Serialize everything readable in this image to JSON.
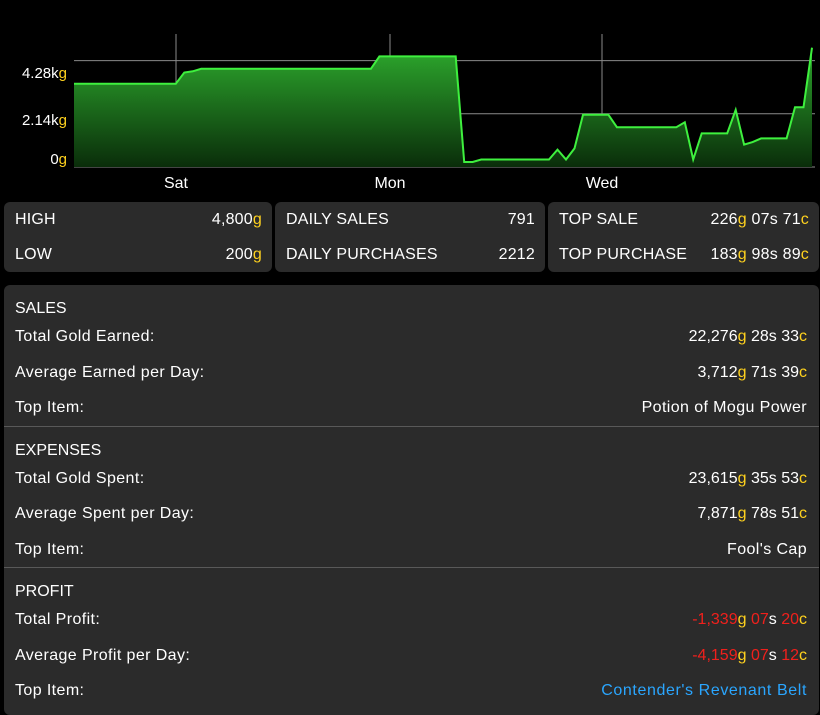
{
  "chart": {
    "y_labels": [
      {
        "num": "4.28k",
        "unit": "g"
      },
      {
        "num": "2.14k",
        "unit": "g"
      },
      {
        "num": "0",
        "unit": "g"
      }
    ],
    "x_labels": [
      "Sat",
      "Mon",
      "Wed"
    ],
    "colors": {
      "line": "#3ef03e",
      "fill_top": "#2da82d",
      "fill_bottom": "#0a2d0a",
      "grid": "#8a8a8a"
    }
  },
  "chart_data": {
    "type": "area",
    "title": "",
    "xlabel": "",
    "ylabel": "",
    "x_ticks": [
      "Sat",
      "Mon",
      "Wed"
    ],
    "y_ticks": [
      "0g",
      "2.14kg",
      "4.28kg"
    ],
    "ylim": [
      0,
      5350
    ],
    "grid": true,
    "series": [
      {
        "values": [
          3350,
          3350,
          3350,
          3350,
          3350,
          3350,
          3350,
          3350,
          3350,
          3350,
          3350,
          3350,
          3350,
          3800,
          3850,
          3950,
          3950,
          3950,
          3950,
          3950,
          3950,
          3950,
          3950,
          3950,
          3950,
          3950,
          3950,
          3950,
          3950,
          3950,
          3950,
          3950,
          3950,
          3950,
          3950,
          3950,
          4450,
          4450,
          4450,
          4450,
          4450,
          4450,
          4450,
          4450,
          4450,
          4450,
          200,
          200,
          300,
          300,
          300,
          300,
          300,
          300,
          300,
          300,
          300,
          700,
          300,
          750,
          2100,
          2100,
          2100,
          2100,
          1600,
          1600,
          1600,
          1600,
          1600,
          1600,
          1600,
          1600,
          1800,
          300,
          1350,
          1350,
          1350,
          1350,
          2300,
          900,
          1000,
          1150,
          1150,
          1150,
          1150,
          2400,
          2400,
          4800
        ]
      }
    ]
  },
  "stats": {
    "high_label": "HIGH",
    "high_value": "4,800",
    "low_label": "LOW",
    "low_value": "200",
    "daily_sales_label": "DAILY SALES",
    "daily_sales_value": "791",
    "daily_purchases_label": "DAILY PURCHASES",
    "daily_purchases_value": "2212",
    "top_sale_label": "TOP SALE",
    "top_sale": {
      "g": "226",
      "s": "07",
      "c": "71"
    },
    "top_purchase_label": "TOP PURCHASE",
    "top_purchase": {
      "g": "183",
      "s": "98",
      "c": "89"
    },
    "gold_suffix": "g",
    "silver_suffix": "s",
    "copper_suffix": "c"
  },
  "sales": {
    "title": "SALES",
    "total_label": "Total Gold Earned:",
    "total": {
      "g": "22,276",
      "s": "28",
      "c": "33"
    },
    "avg_label": "Average Earned per Day:",
    "avg": {
      "g": "3,712",
      "s": "71",
      "c": "39"
    },
    "top_label": "Top Item:",
    "top_item": "Potion of Mogu Power"
  },
  "expenses": {
    "title": "EXPENSES",
    "total_label": "Total Gold Spent:",
    "total": {
      "g": "23,615",
      "s": "35",
      "c": "53"
    },
    "avg_label": "Average Spent per Day:",
    "avg": {
      "g": "7,871",
      "s": "78",
      "c": "51"
    },
    "top_label": "Top Item:",
    "top_item": "Fool's Cap"
  },
  "profit": {
    "title": "PROFIT",
    "total_label": "Total Profit:",
    "total": {
      "g": "-1,339",
      "s": "07",
      "c": "20"
    },
    "avg_label": "Average Profit per Day:",
    "avg": {
      "g": "-4,159",
      "s": "07",
      "c": "12"
    },
    "top_label": "Top Item:",
    "top_item": "Contender's Revenant Belt"
  }
}
